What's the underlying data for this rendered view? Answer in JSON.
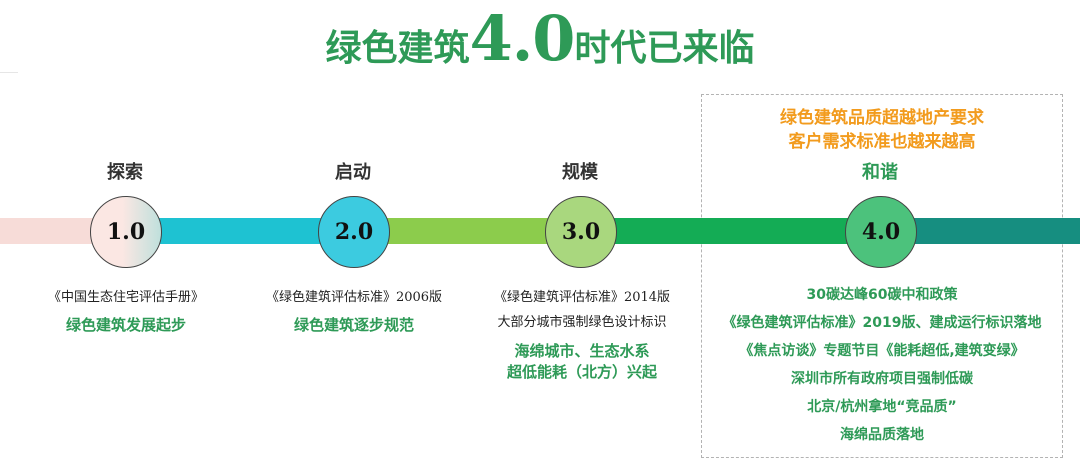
{
  "title": {
    "prefix": "绿色建筑",
    "version": "4.0",
    "suffix": "时代已来临"
  },
  "stages": [
    {
      "label": "探索",
      "version": "1.0"
    },
    {
      "label": "启动",
      "version": "2.0"
    },
    {
      "label": "规模",
      "version": "3.0"
    },
    {
      "label": "和谐",
      "version": "4.0"
    }
  ],
  "colors": {
    "title_green": "#2e9a57",
    "highlight_orange": "#f29b1d",
    "bar": [
      "#f7dcd8",
      "#1ec2d2",
      "#8ccc4c",
      "#14ac55",
      "#168e80"
    ]
  },
  "box_heading": [
    "绿色建筑品质超越地产要求",
    "客户需求标准也越来越高"
  ],
  "descriptions": {
    "stage1": {
      "line1": "《中国生态住宅评估手册》",
      "line2": "绿色建筑发展起步"
    },
    "stage2": {
      "line1": "《绿色建筑评估标准》2006版",
      "line2": "绿色建筑逐步规范"
    },
    "stage3": {
      "line1": "《绿色建筑评估标准》2014版",
      "line2": "大部分城市强制绿色设计标识",
      "line3": "海绵城市、生态水系",
      "line4": "超低能耗（北方）兴起"
    },
    "stage4": [
      "30碳达峰60碳中和政策",
      "《绿色建筑评估标准》2019版、建成运行标识落地",
      "《焦点访谈》专题节目《能耗超低,建筑变绿》",
      "深圳市所有政府项目强制低碳",
      "北京/杭州拿地“竞品质”",
      "海绵品质落地"
    ]
  }
}
